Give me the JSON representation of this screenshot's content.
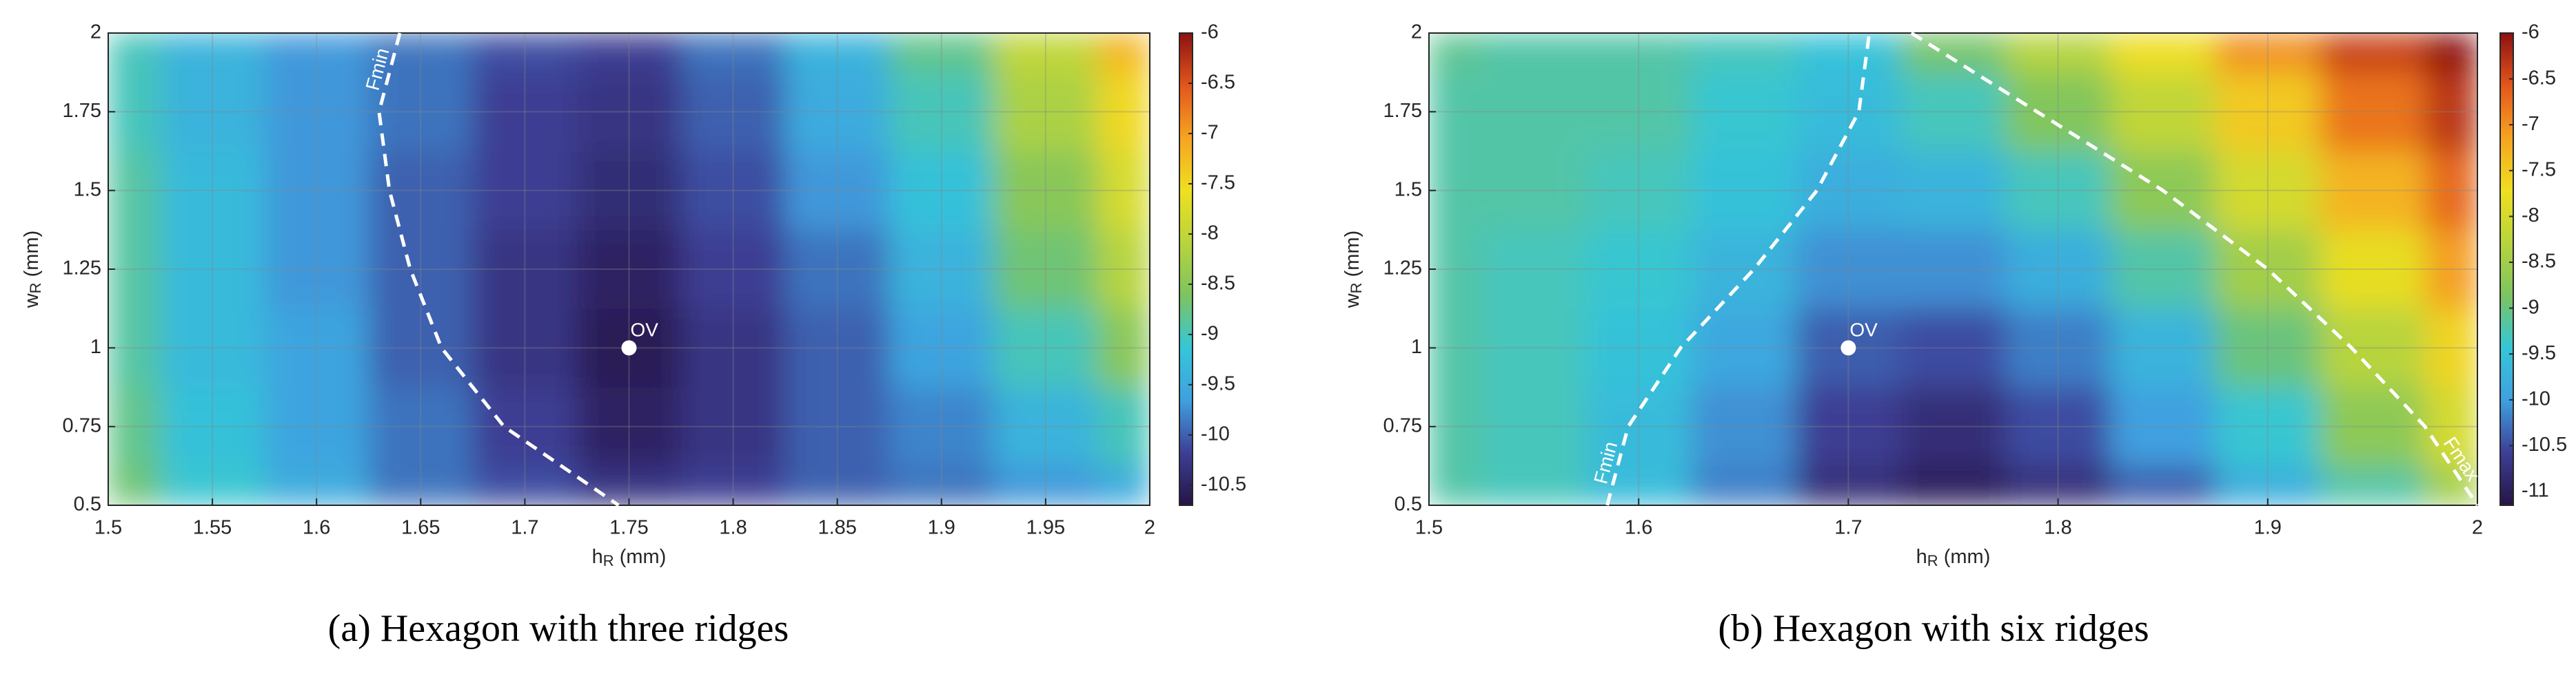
{
  "chart_data": [
    {
      "type": "contour",
      "caption": "(a)  Hexagon with three ridges",
      "xlabel": [
        "h",
        "R",
        " (mm)"
      ],
      "ylabel": [
        "w",
        "R",
        " (mm)"
      ],
      "x": [
        1.5,
        1.55,
        1.6,
        1.65,
        1.7,
        1.75,
        1.8,
        1.85,
        1.9,
        1.95,
        2
      ],
      "y": [
        0.5,
        0.75,
        1,
        1.25,
        1.5,
        1.75,
        2
      ],
      "z": [
        [
          -8.7,
          -9.1,
          -9.5,
          -9.9,
          -10.1,
          -10.3,
          -10.2,
          -10.0,
          -9.9,
          -9.7,
          -9.5
        ],
        [
          -8.8,
          -9.2,
          -9.6,
          -9.9,
          -10.2,
          -10.5,
          -10.3,
          -10.0,
          -9.8,
          -9.4,
          -9.0
        ],
        [
          -8.9,
          -9.3,
          -9.6,
          -10.0,
          -10.3,
          -10.6,
          -10.3,
          -10.0,
          -9.6,
          -9.0,
          -8.5
        ],
        [
          -8.9,
          -9.3,
          -9.7,
          -10.0,
          -10.3,
          -10.5,
          -10.2,
          -9.9,
          -9.4,
          -8.7,
          -8.1
        ],
        [
          -8.9,
          -9.3,
          -9.7,
          -10.0,
          -10.2,
          -10.4,
          -10.1,
          -9.7,
          -9.2,
          -8.5,
          -7.8
        ],
        [
          -9.0,
          -9.4,
          -9.7,
          -9.9,
          -10.2,
          -10.3,
          -10.0,
          -9.5,
          -9.0,
          -8.2,
          -7.5
        ],
        [
          -9.0,
          -9.4,
          -9.7,
          -9.9,
          -10.1,
          -10.2,
          -9.9,
          -9.4,
          -8.8,
          -8.0,
          -7.2
        ]
      ],
      "xlim": [
        1.5,
        2
      ],
      "ylim": [
        0.5,
        2
      ],
      "xticks": [
        1.5,
        1.55,
        1.6,
        1.65,
        1.7,
        1.75,
        1.8,
        1.85,
        1.9,
        1.95,
        2
      ],
      "yticks": [
        0.5,
        0.75,
        1,
        1.25,
        1.5,
        1.75,
        2
      ],
      "clim": [
        -10.7,
        -6
      ],
      "cticks": [
        -6,
        -6.5,
        -7,
        -7.5,
        -8,
        -8.5,
        -9,
        -9.5,
        -10,
        -10.5
      ],
      "colormap": [
        "#261445",
        "#3d3f96",
        "#3fa0e0",
        "#35c6d8",
        "#7cc460",
        "#b8d43c",
        "#efe020",
        "#f6a421",
        "#e2561c",
        "#8c1111"
      ],
      "grid": true,
      "point": {
        "x": 1.75,
        "y": 1,
        "label": "OV"
      },
      "lines": [
        {
          "label": "Fmin",
          "x": [
            1.64,
            1.63,
            1.635,
            1.645,
            1.66,
            1.69,
            1.745
          ],
          "y": [
            2,
            1.75,
            1.5,
            1.25,
            1,
            0.75,
            0.5
          ]
        }
      ]
    },
    {
      "type": "contour",
      "caption": "(b)  Hexagon with six ridges",
      "xlabel": [
        "h",
        "R",
        " (mm)"
      ],
      "ylabel": [
        "w",
        "R",
        " (mm)"
      ],
      "x": [
        1.5,
        1.55,
        1.6,
        1.65,
        1.7,
        1.75,
        1.8,
        1.85,
        1.9,
        1.95,
        2
      ],
      "y": [
        0.5,
        0.75,
        1,
        1.25,
        1.5,
        1.75,
        2
      ],
      "z": [
        [
          -9.2,
          -9.3,
          -9.6,
          -10.2,
          -10.8,
          -11.0,
          -10.8,
          -10.4,
          -9.8,
          -9.2,
          -8.5
        ],
        [
          -9.2,
          -9.3,
          -9.6,
          -10.1,
          -10.6,
          -10.8,
          -10.5,
          -10.0,
          -9.4,
          -8.7,
          -8.0
        ],
        [
          -9.2,
          -9.3,
          -9.5,
          -9.9,
          -10.4,
          -10.5,
          -10.2,
          -9.7,
          -9.0,
          -8.3,
          -7.6
        ],
        [
          -9.2,
          -9.3,
          -9.4,
          -9.7,
          -10.1,
          -10.1,
          -9.8,
          -9.2,
          -8.5,
          -7.8,
          -7.1
        ],
        [
          -9.2,
          -9.2,
          -9.3,
          -9.5,
          -9.8,
          -9.7,
          -9.3,
          -8.7,
          -8.0,
          -7.3,
          -6.7
        ],
        [
          -9.2,
          -9.2,
          -9.2,
          -9.4,
          -9.6,
          -9.3,
          -8.8,
          -8.2,
          -7.5,
          -6.8,
          -6.3
        ],
        [
          -9.1,
          -9.2,
          -9.2,
          -9.3,
          -9.5,
          -8.9,
          -8.3,
          -7.7,
          -7.0,
          -6.4,
          -6.0
        ]
      ],
      "xlim": [
        1.5,
        2
      ],
      "ylim": [
        0.5,
        2
      ],
      "xticks": [
        1.5,
        1.6,
        1.7,
        1.8,
        1.9,
        2
      ],
      "yticks": [
        0.5,
        0.75,
        1,
        1.25,
        1.5,
        1.75,
        2
      ],
      "clim": [
        -11.15,
        -6
      ],
      "cticks": [
        -6,
        -6.5,
        -7,
        -7.5,
        -8,
        -8.5,
        -9,
        -9.5,
        -10,
        -10.5,
        -11
      ],
      "colormap": [
        "#261445",
        "#3d3f96",
        "#3fa0e0",
        "#35c6d8",
        "#7cc460",
        "#b8d43c",
        "#efe020",
        "#f6a421",
        "#e2561c",
        "#8c1111"
      ],
      "grid": true,
      "point": {
        "x": 1.7,
        "y": 1,
        "label": "OV"
      },
      "lines": [
        {
          "label": "Fmin",
          "x": [
            1.585,
            1.595,
            1.62,
            1.655,
            1.685,
            1.705,
            1.71
          ],
          "y": [
            0.5,
            0.75,
            1,
            1.25,
            1.5,
            1.75,
            2
          ]
        },
        {
          "label": "Fmax",
          "x": [
            1.73,
            1.79,
            1.85,
            1.9,
            1.94,
            1.975,
            2
          ],
          "y": [
            2,
            1.75,
            1.5,
            1.25,
            1,
            0.75,
            0.5
          ]
        }
      ]
    }
  ]
}
